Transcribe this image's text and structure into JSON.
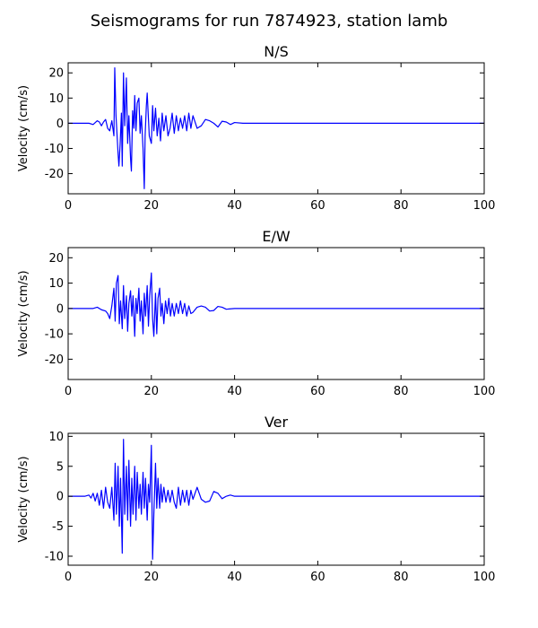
{
  "figure": {
    "title": "Seismograms for run 7874923, station lamb"
  },
  "chart_data": [
    {
      "type": "line",
      "title": "N/S",
      "xlabel": "",
      "ylabel": "Velocity (cm/s)",
      "xlim": [
        0,
        100
      ],
      "ylim": [
        -28,
        24
      ],
      "xticks": [
        0,
        20,
        40,
        60,
        80,
        100
      ],
      "yticks": [
        20,
        10,
        0,
        -10,
        -20
      ],
      "color": "#0000ff",
      "grid": false,
      "x": [
        0,
        5,
        6,
        7,
        7.5,
        8,
        8.5,
        9,
        9.5,
        10,
        10.5,
        11,
        11.2,
        11.5,
        11.8,
        12,
        12.2,
        12.5,
        12.8,
        13,
        13.3,
        13.6,
        14,
        14.3,
        14.6,
        15,
        15.2,
        15.5,
        15.8,
        16,
        16.3,
        16.6,
        17,
        17.3,
        17.6,
        18,
        18.3,
        18.5,
        18.8,
        19,
        19.5,
        20,
        20.3,
        20.6,
        21,
        21.4,
        21.8,
        22.2,
        22.6,
        23,
        23.5,
        24,
        24.5,
        25,
        25.5,
        26,
        26.5,
        27,
        27.5,
        28,
        28.5,
        29,
        29.5,
        30,
        31,
        32,
        33,
        34,
        35,
        36,
        37,
        38,
        39,
        40,
        42,
        45,
        50,
        100
      ],
      "y": [
        0,
        0,
        -0.5,
        1,
        0.5,
        -1,
        0.5,
        1.5,
        -2,
        -3,
        1,
        -5,
        22,
        3,
        -6,
        -12,
        -17,
        -8,
        4,
        -17,
        20,
        -1,
        18,
        -8,
        3,
        -14,
        -19,
        5,
        -2,
        11,
        -3,
        8,
        10,
        -4,
        3,
        -10,
        -26,
        -5,
        7,
        12,
        -5,
        -8,
        7,
        -3,
        6,
        -5,
        2,
        -7,
        4,
        -3,
        3,
        -5,
        -2,
        4,
        -4,
        3,
        -3,
        2,
        -2,
        3,
        -3,
        4,
        -2,
        3,
        -2,
        -1,
        1.5,
        1,
        0,
        -1.5,
        0.8,
        0.5,
        -0.5,
        0.3,
        0,
        0,
        0,
        0
      ]
    },
    {
      "type": "line",
      "title": "E/W",
      "xlabel": "",
      "ylabel": "Velocity (cm/s)",
      "xlim": [
        0,
        100
      ],
      "ylim": [
        -28,
        24
      ],
      "xticks": [
        0,
        20,
        40,
        60,
        80,
        100
      ],
      "yticks": [
        20,
        10,
        0,
        -10,
        -20
      ],
      "color": "#0000ff",
      "grid": false,
      "x": [
        0,
        5,
        6,
        7,
        8,
        9,
        9.5,
        10,
        10.5,
        11,
        11.3,
        11.6,
        12,
        12.3,
        12.6,
        13,
        13.3,
        13.6,
        14,
        14.3,
        14.6,
        15,
        15.3,
        15.6,
        16,
        16.3,
        16.6,
        17,
        17.3,
        17.6,
        18,
        18.3,
        18.6,
        19,
        19.3,
        19.6,
        20,
        20.3,
        20.6,
        21,
        21.3,
        21.6,
        22,
        22.3,
        22.6,
        23,
        23.4,
        23.8,
        24.2,
        24.6,
        25,
        25.5,
        26,
        26.5,
        27,
        27.5,
        28,
        28.5,
        29,
        29.5,
        30,
        31,
        32,
        33,
        34,
        35,
        36,
        37,
        38,
        40,
        45,
        50,
        100
      ],
      "y": [
        0,
        0,
        0,
        0.5,
        -0.5,
        -1,
        -2,
        -4,
        1,
        8,
        -5,
        10,
        13,
        -6,
        3,
        -8,
        9,
        -4,
        5,
        -9,
        2,
        7,
        -3,
        5,
        -11,
        4,
        -2,
        8,
        -5,
        3,
        -10,
        6,
        -3,
        9,
        -7,
        5,
        14,
        -4,
        -11,
        6,
        -10,
        4,
        8,
        -3,
        2,
        -6,
        3,
        -2,
        4,
        -3,
        2,
        -3,
        2,
        -2,
        3,
        -2,
        2,
        -3,
        1,
        -2,
        -1.5,
        0.5,
        1,
        0.5,
        -1,
        -0.8,
        0.8,
        0.5,
        -0.3,
        0,
        0,
        0,
        0
      ]
    },
    {
      "type": "line",
      "title": "Ver",
      "xlabel": "",
      "ylabel": "Velocity (cm/s)",
      "xlim": [
        0,
        100
      ],
      "ylim": [
        -11.5,
        10.5
      ],
      "xticks": [
        0,
        20,
        40,
        60,
        80,
        100
      ],
      "yticks": [
        10,
        5,
        0,
        -5,
        -10
      ],
      "color": "#0000ff",
      "grid": false,
      "x": [
        0,
        4,
        5,
        5.5,
        6,
        6.5,
        7,
        7.5,
        8,
        8.5,
        9,
        9.5,
        10,
        10.5,
        11,
        11.3,
        11.6,
        12,
        12.3,
        12.6,
        13,
        13.3,
        13.6,
        14,
        14.3,
        14.6,
        15,
        15.3,
        15.6,
        16,
        16.3,
        16.6,
        17,
        17.3,
        17.6,
        18,
        18.3,
        18.6,
        19,
        19.3,
        19.6,
        20,
        20.3,
        20.6,
        21,
        21.3,
        21.6,
        22,
        22.3,
        22.6,
        23,
        23.5,
        24,
        24.5,
        25,
        25.5,
        26,
        26.5,
        27,
        27.5,
        28,
        28.5,
        29,
        29.5,
        30,
        31,
        32,
        33,
        34,
        35,
        36,
        37,
        38,
        39,
        40,
        42,
        45,
        50,
        100
      ],
      "y": [
        0,
        0,
        0.2,
        -0.3,
        0.5,
        -0.8,
        0.5,
        -1.5,
        1,
        -2,
        1.5,
        -1,
        -2,
        1.5,
        -4,
        5.5,
        -3,
        5,
        -5,
        3,
        -9.5,
        9.5,
        -3,
        5,
        -4,
        6,
        -5,
        3,
        -3,
        5,
        -4,
        4,
        -2,
        2,
        -3,
        4,
        -2,
        3,
        -4,
        2,
        -1,
        8.5,
        -10.5,
        -3,
        5.5,
        -2,
        3,
        -2,
        2,
        -1,
        1.5,
        -1,
        1,
        -1,
        1,
        -1,
        -2,
        1.5,
        -1.5,
        1,
        -1,
        1,
        -1.5,
        1,
        -0.5,
        1.5,
        -0.5,
        -1,
        -0.8,
        0.8,
        0.5,
        -0.4,
        0,
        0.2,
        0,
        0,
        0,
        0,
        0
      ]
    }
  ]
}
